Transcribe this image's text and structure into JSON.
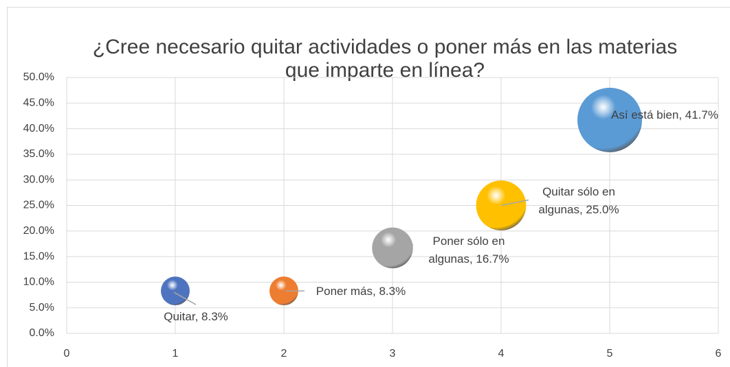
{
  "chart_data": {
    "type": "bubble",
    "title": "¿Cree necesario quitar actividades o poner más en las materias que imparte en línea?",
    "x": [
      1,
      2,
      3,
      4,
      5
    ],
    "values": [
      8.3,
      8.3,
      16.7,
      25.0,
      41.7
    ],
    "sizes": [
      8.3,
      8.3,
      16.7,
      25.0,
      41.7
    ],
    "value_labels": [
      "Quitar, 8.3%",
      "Poner más, 8.3%",
      "Poner sólo en algunas, 16.7%",
      "Quitar sólo en algunas, 25.0%",
      "Así está bien, 41.7%"
    ],
    "colors": [
      "#4f74bf",
      "#ed7d31",
      "#a5a5a5",
      "#ffc000",
      "#5b9bd5"
    ],
    "xlim": [
      0,
      6
    ],
    "xticks": [
      0,
      1,
      2,
      3,
      4,
      5,
      6
    ],
    "ylim": [
      0,
      50
    ],
    "yticks": [
      {
        "value": 0,
        "label": "0.0%"
      },
      {
        "value": 5,
        "label": "5.0%"
      },
      {
        "value": 10,
        "label": "10.0%"
      },
      {
        "value": 15,
        "label": "15.0%"
      },
      {
        "value": 20,
        "label": "20.0%"
      },
      {
        "value": 25,
        "label": "25.0%"
      },
      {
        "value": 30,
        "label": "30.0%"
      },
      {
        "value": 35,
        "label": "35.0%"
      },
      {
        "value": 40,
        "label": "40.0%"
      },
      {
        "value": 45,
        "label": "45.0%"
      },
      {
        "value": 50,
        "label": "50.0%"
      }
    ],
    "grid": true
  }
}
